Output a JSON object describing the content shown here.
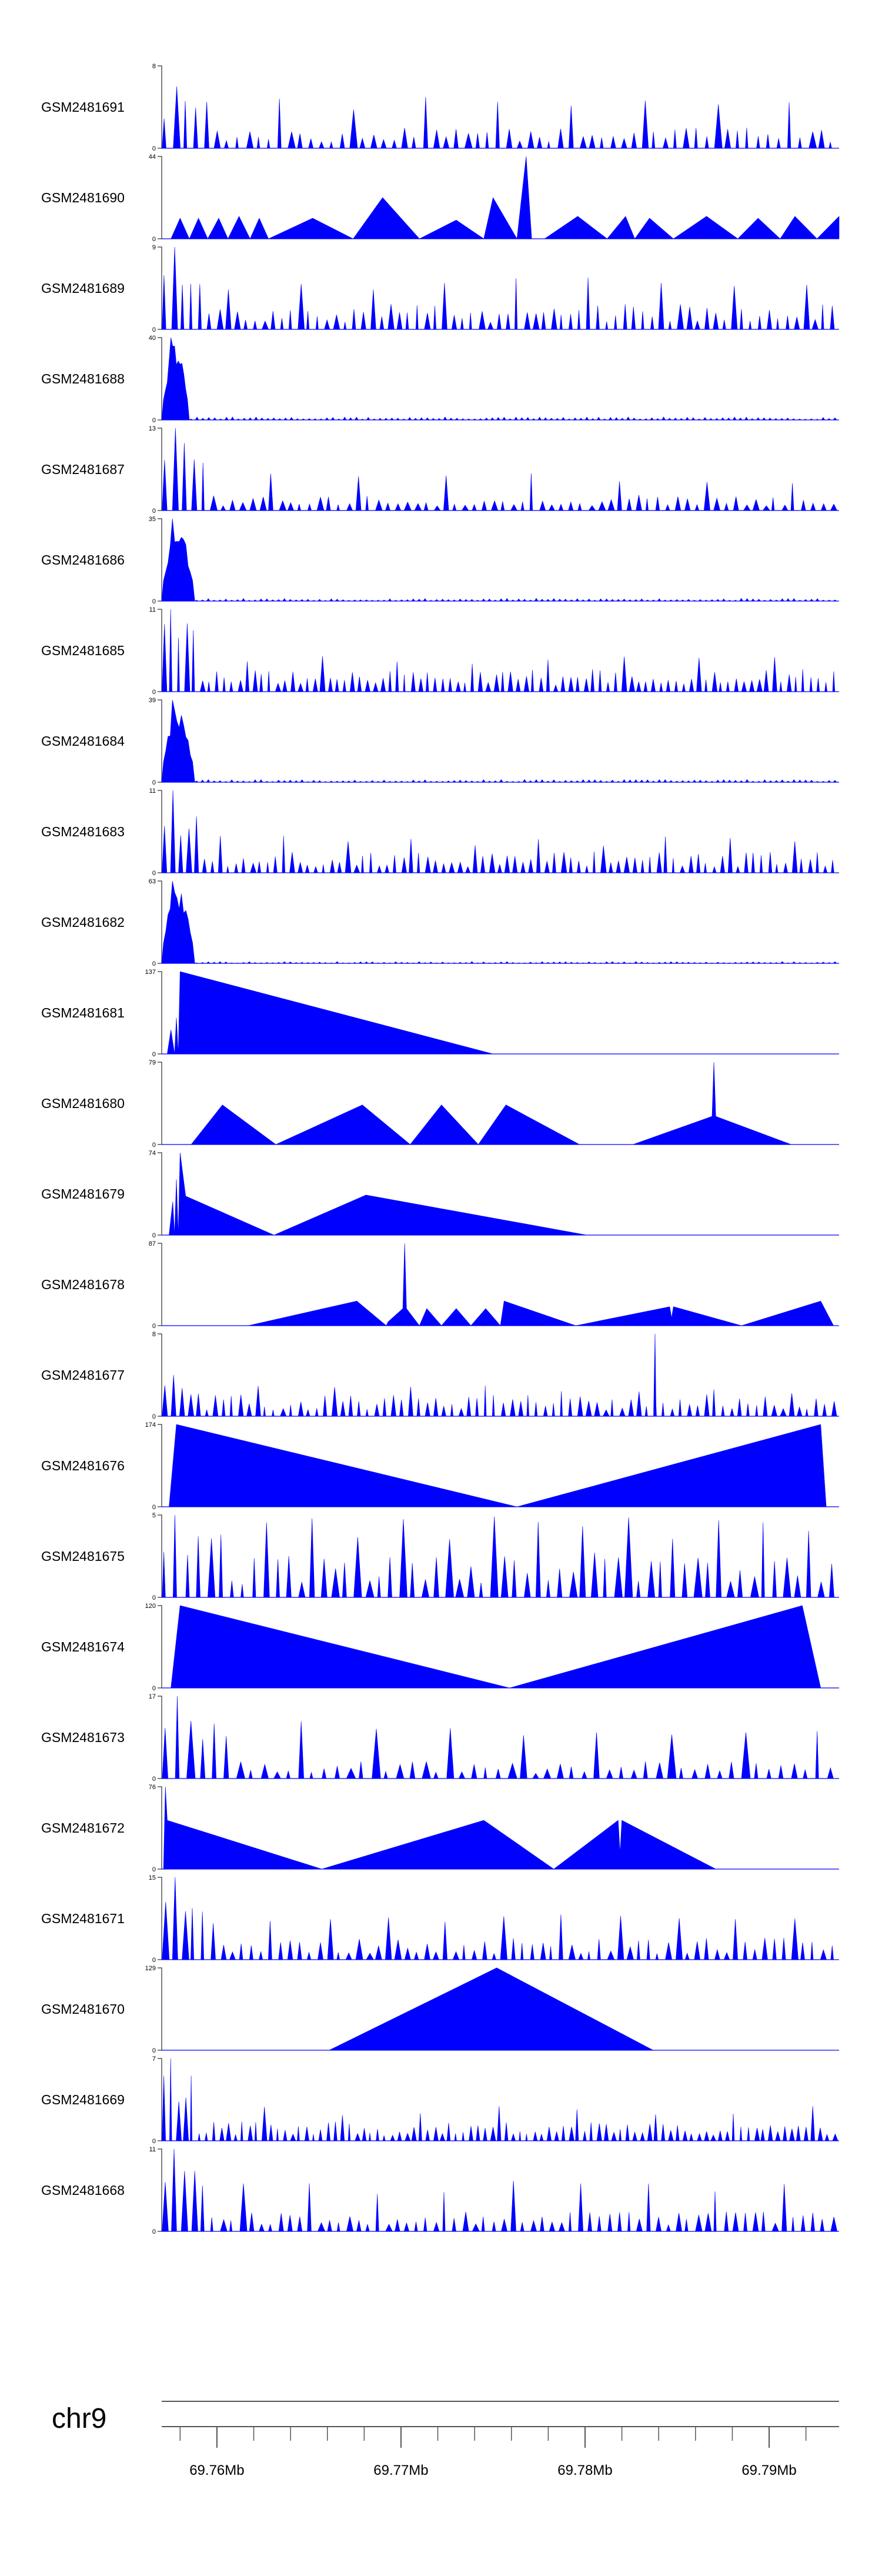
{
  "colors": {
    "signal": "#0000ff",
    "axis": "#555555",
    "text": "#000000"
  },
  "chart_data": {
    "type": "area",
    "title": "",
    "chromosome": "chr9",
    "x_range": [
      69.757,
      69.7938
    ],
    "x_unit": "Mb",
    "x_ticks": [
      {
        "value": 69.76,
        "label": "69.76Mb"
      },
      {
        "value": 69.77,
        "label": "69.77Mb"
      },
      {
        "value": 69.78,
        "label": "69.78Mb"
      },
      {
        "value": 69.79,
        "label": "69.79Mb"
      }
    ],
    "minor_tick_step": 0.002,
    "tracks": [
      {
        "name": "GSM2481691",
        "ymax": 8,
        "profile": "noise",
        "params": {
          "n": 65,
          "mean": 1.6,
          "spike_every": 7,
          "spike_h": 5,
          "early_peak": 6,
          "seed": 11
        }
      },
      {
        "name": "GSM2481690",
        "ymax": 44,
        "points": [
          [
            69.757,
            0
          ],
          [
            69.7575,
            0
          ],
          [
            69.758,
            11
          ],
          [
            69.7585,
            0
          ],
          [
            69.759,
            11
          ],
          [
            69.7595,
            0
          ],
          [
            69.7601,
            11
          ],
          [
            69.7606,
            0
          ],
          [
            69.7612,
            12
          ],
          [
            69.7618,
            0
          ],
          [
            69.7623,
            11
          ],
          [
            69.7628,
            0
          ],
          [
            69.7652,
            11
          ],
          [
            69.7674,
            0
          ],
          [
            69.769,
            22
          ],
          [
            69.771,
            0
          ],
          [
            69.773,
            10
          ],
          [
            69.7745,
            0
          ],
          [
            69.775,
            22
          ],
          [
            69.7763,
            0
          ],
          [
            69.7768,
            44
          ],
          [
            69.7771,
            0
          ],
          [
            69.7778,
            0
          ],
          [
            69.7796,
            12
          ],
          [
            69.7812,
            0
          ],
          [
            69.7822,
            12
          ],
          [
            69.7827,
            0
          ],
          [
            69.7835,
            11
          ],
          [
            69.7848,
            0
          ],
          [
            69.7866,
            12
          ],
          [
            69.7883,
            0
          ],
          [
            69.7894,
            11
          ],
          [
            69.7906,
            0
          ],
          [
            69.7914,
            12
          ],
          [
            69.7926,
            0
          ],
          [
            69.7938,
            12
          ],
          [
            69.7938,
            0
          ]
        ]
      },
      {
        "name": "GSM2481689",
        "ymax": 9,
        "profile": "noise",
        "params": {
          "n": 75,
          "mean": 2.2,
          "spike_every": 8,
          "spike_h": 6,
          "early_peak": 9,
          "seed": 23
        }
      },
      {
        "name": "GSM2481688",
        "ymax": 40,
        "profile": "early",
        "params": {
          "peak": 40,
          "end": 69.7585,
          "base": 1.2,
          "n": 110,
          "seed": 31
        }
      },
      {
        "name": "GSM2481687",
        "ymax": 13,
        "profile": "noise",
        "params": {
          "n": 70,
          "mean": 2.0,
          "spike_every": 9,
          "spike_h": 6,
          "early_peak": 13,
          "seed": 47
        }
      },
      {
        "name": "GSM2481686",
        "ymax": 35,
        "profile": "early",
        "params": {
          "peak": 35,
          "end": 69.7588,
          "base": 1.0,
          "n": 110,
          "seed": 53
        }
      },
      {
        "name": "GSM2481685",
        "ymax": 11,
        "profile": "noise",
        "params": {
          "n": 90,
          "mean": 2.4,
          "spike_every": 10,
          "spike_h": 5,
          "early_peak": 11,
          "seed": 61
        }
      },
      {
        "name": "GSM2481684",
        "ymax": 39,
        "profile": "early",
        "params": {
          "peak": 39,
          "end": 69.7588,
          "base": 1.1,
          "n": 110,
          "seed": 67
        }
      },
      {
        "name": "GSM2481683",
        "ymax": 11,
        "profile": "noise",
        "params": {
          "n": 85,
          "mean": 2.3,
          "spike_every": 8,
          "spike_h": 5,
          "early_peak": 11,
          "seed": 71
        }
      },
      {
        "name": "GSM2481682",
        "ymax": 63,
        "profile": "early",
        "params": {
          "peak": 63,
          "end": 69.7588,
          "base": 1.2,
          "n": 110,
          "seed": 79
        }
      },
      {
        "name": "GSM2481681",
        "ymax": 137,
        "points": [
          [
            69.757,
            0
          ],
          [
            69.7573,
            0
          ],
          [
            69.7575,
            40
          ],
          [
            69.7577,
            0
          ],
          [
            69.7578,
            60
          ],
          [
            69.7579,
            0
          ],
          [
            69.758,
            137
          ],
          [
            69.775,
            0
          ]
        ]
      },
      {
        "name": "GSM2481680",
        "ymax": 79,
        "points": [
          [
            69.757,
            0
          ],
          [
            69.7586,
            0
          ],
          [
            69.7603,
            38
          ],
          [
            69.7632,
            0
          ],
          [
            69.7679,
            38
          ],
          [
            69.7705,
            0
          ],
          [
            69.7722,
            38
          ],
          [
            69.7742,
            0
          ],
          [
            69.7757,
            38
          ],
          [
            69.7797,
            0
          ],
          [
            69.7826,
            0
          ],
          [
            69.7869,
            27
          ],
          [
            69.787,
            79
          ],
          [
            69.7871,
            27
          ],
          [
            69.7912,
            0
          ]
        ]
      },
      {
        "name": "GSM2481679",
        "ymax": 74,
        "points": [
          [
            69.757,
            0
          ],
          [
            69.7574,
            0
          ],
          [
            69.7576,
            30
          ],
          [
            69.7577,
            0
          ],
          [
            69.7578,
            50
          ],
          [
            69.7579,
            0
          ],
          [
            69.758,
            74
          ],
          [
            69.7583,
            35
          ],
          [
            69.7631,
            0
          ],
          [
            69.7681,
            36
          ],
          [
            69.7801,
            0
          ]
        ]
      },
      {
        "name": "GSM2481678",
        "ymax": 87,
        "points": [
          [
            69.757,
            0
          ],
          [
            69.7617,
            0
          ],
          [
            69.7676,
            26
          ],
          [
            69.7692,
            0
          ],
          [
            69.7693,
            4
          ],
          [
            69.7701,
            18
          ],
          [
            69.7702,
            87
          ],
          [
            69.7703,
            18
          ],
          [
            69.771,
            0
          ],
          [
            69.7714,
            18
          ],
          [
            69.7722,
            0
          ],
          [
            69.773,
            18
          ],
          [
            69.7738,
            0
          ],
          [
            69.7746,
            18
          ],
          [
            69.7754,
            0
          ],
          [
            69.7756,
            26
          ],
          [
            69.7795,
            0
          ],
          [
            69.7846,
            20
          ],
          [
            69.7847,
            8
          ],
          [
            69.7848,
            20
          ],
          [
            69.7885,
            0
          ],
          [
            69.7928,
            26
          ],
          [
            69.7935,
            0
          ]
        ]
      },
      {
        "name": "GSM2481677",
        "ymax": 8,
        "profile": "noise",
        "params": {
          "n": 80,
          "mean": 1.7,
          "spike_every": 9,
          "spike_h": 3,
          "early_peak": 4,
          "big_at": 69.7838,
          "big_h": 8,
          "seed": 83
        }
      },
      {
        "name": "GSM2481676",
        "ymax": 174,
        "points": [
          [
            69.757,
            0
          ],
          [
            69.7574,
            0
          ],
          [
            69.7578,
            174
          ],
          [
            69.7763,
            0
          ],
          [
            69.7928,
            174
          ],
          [
            69.7931,
            0
          ]
        ]
      },
      {
        "name": "GSM2481675",
        "ymax": 5,
        "profile": "noise",
        "params": {
          "n": 60,
          "mean": 2.2,
          "spike_every": 4,
          "spike_h": 5,
          "early_peak": 5,
          "seed": 97
        }
      },
      {
        "name": "GSM2481674",
        "ymax": 120,
        "points": [
          [
            69.757,
            0
          ],
          [
            69.7575,
            0
          ],
          [
            69.758,
            120
          ],
          [
            69.7759,
            0
          ],
          [
            69.7918,
            120
          ],
          [
            69.7928,
            0
          ]
        ]
      },
      {
        "name": "GSM2481673",
        "ymax": 17,
        "profile": "noise",
        "params": {
          "n": 55,
          "mean": 3.0,
          "spike_every": 6,
          "spike_h": 12,
          "early_peak": 17,
          "seed": 101
        }
      },
      {
        "name": "GSM2481672",
        "ymax": 76,
        "points": [
          [
            69.757,
            0
          ],
          [
            69.7571,
            0
          ],
          [
            69.7572,
            76
          ],
          [
            69.7573,
            45
          ],
          [
            69.7657,
            0
          ],
          [
            69.7745,
            45
          ],
          [
            69.7783,
            0
          ],
          [
            69.7818,
            45
          ],
          [
            69.7819,
            15
          ],
          [
            69.782,
            45
          ],
          [
            69.7871,
            0
          ]
        ]
      },
      {
        "name": "GSM2481671",
        "ymax": 15,
        "profile": "noise",
        "params": {
          "n": 70,
          "mean": 3.2,
          "spike_every": 6,
          "spike_h": 9,
          "early_peak": 15,
          "seed": 107
        }
      },
      {
        "name": "GSM2481670",
        "ymax": 129,
        "points": [
          [
            69.757,
            0
          ],
          [
            69.7661,
            0
          ],
          [
            69.7752,
            129
          ],
          [
            69.7837,
            0
          ]
        ]
      },
      {
        "name": "GSM2481669",
        "ymax": 7,
        "profile": "noise",
        "params": {
          "n": 95,
          "mean": 1.3,
          "spike_every": 11,
          "spike_h": 3,
          "early_peak": 7,
          "seed": 113
        }
      },
      {
        "name": "GSM2481668",
        "ymax": 11,
        "profile": "noise",
        "params": {
          "n": 70,
          "mean": 2.3,
          "spike_every": 7,
          "spike_h": 7,
          "early_peak": 11,
          "seed": 127
        }
      }
    ]
  }
}
